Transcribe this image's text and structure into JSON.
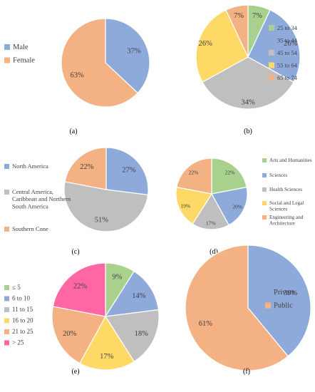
{
  "colors": {
    "blue": "#8eaadb",
    "orange": "#f4b183",
    "green": "#a9d18e",
    "gray": "#bfbfbf",
    "yellow": "#ffd966",
    "pink": "#ff66a3"
  },
  "chart_data": [
    {
      "type": "pie",
      "caption": "(a)",
      "legend_position": "left",
      "slices": [
        {
          "label": "Male",
          "value": 37,
          "value_label": "37%",
          "color": "#8eaadb"
        },
        {
          "label": "Female",
          "value": 63,
          "value_label": "63%",
          "color": "#f4b183"
        }
      ]
    },
    {
      "type": "pie",
      "caption": "(b)",
      "legend_position": "right",
      "slices": [
        {
          "label": "25 to 34",
          "value": 7,
          "value_label": "7%",
          "color": "#a9d18e"
        },
        {
          "label": "35 to 44",
          "value": 26,
          "value_label": "26%",
          "color": "#8eaadb"
        },
        {
          "label": "45 to 54",
          "value": 34,
          "value_label": "34%",
          "color": "#bfbfbf"
        },
        {
          "label": "55 to 64",
          "value": 26,
          "value_label": "26%",
          "color": "#ffd966"
        },
        {
          "label": "65 to 74",
          "value": 7,
          "value_label": "7%",
          "color": "#f4b183"
        }
      ]
    },
    {
      "type": "pie",
      "caption": "(c)",
      "legend_position": "left",
      "slices": [
        {
          "label": "North America",
          "value": 27,
          "value_label": "27%",
          "color": "#8eaadb"
        },
        {
          "label": "Central America, Caribbean and Northern South America",
          "value": 51,
          "value_label": "51%",
          "color": "#bfbfbf"
        },
        {
          "label": "Southern Cone",
          "value": 22,
          "value_label": "22%",
          "color": "#f4b183"
        }
      ]
    },
    {
      "type": "pie",
      "caption": "(d)",
      "legend_position": "right",
      "slices": [
        {
          "label": "Arts and Humanities",
          "value": 22,
          "value_label": "22%",
          "color": "#a9d18e"
        },
        {
          "label": "Sciences",
          "value": 20,
          "value_label": "20%",
          "color": "#8eaadb"
        },
        {
          "label": "Health Sciences",
          "value": 17,
          "value_label": "17%",
          "color": "#bfbfbf"
        },
        {
          "label": "Social and Legal Sciences",
          "value": 19,
          "value_label": "19%",
          "color": "#ffd966"
        },
        {
          "label": "Engineering and Architecture",
          "value": 22,
          "value_label": "22%",
          "color": "#f4b183"
        }
      ]
    },
    {
      "type": "pie",
      "caption": "(e)",
      "legend_position": "left",
      "slices": [
        {
          "label": "≤ 5",
          "value": 9,
          "value_label": "9%",
          "color": "#a9d18e"
        },
        {
          "label": "6 to 10",
          "value": 14,
          "value_label": "14%",
          "color": "#8eaadb"
        },
        {
          "label": "11 to 15",
          "value": 18,
          "value_label": "18%",
          "color": "#bfbfbf"
        },
        {
          "label": "16 to 20",
          "value": 17,
          "value_label": "17%",
          "color": "#ffd966"
        },
        {
          "label": "21 to 25",
          "value": 20,
          "value_label": "20%",
          "color": "#f4b183"
        },
        {
          "label": "> 25",
          "value": 22,
          "value_label": "22%",
          "color": "#ff66a3"
        }
      ]
    },
    {
      "type": "pie",
      "caption": "(f)",
      "legend_position": "right",
      "slices": [
        {
          "label": "Private",
          "value": 39,
          "value_label": "39%",
          "color": "#8eaadb"
        },
        {
          "label": "Public",
          "value": 61,
          "value_label": "61%",
          "color": "#f4b183"
        }
      ]
    }
  ]
}
